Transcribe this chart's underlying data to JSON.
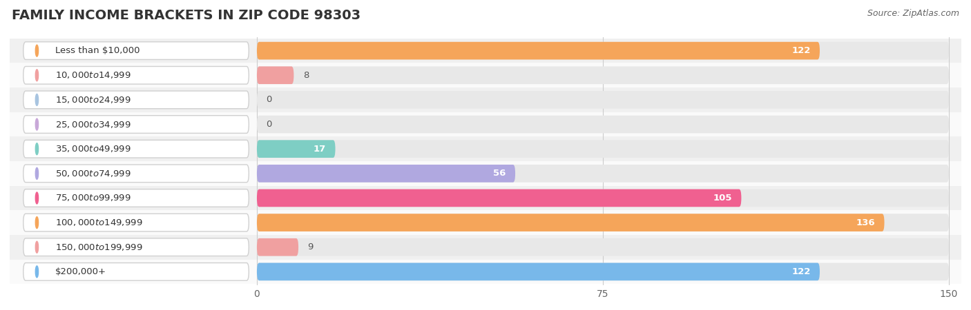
{
  "title": "FAMILY INCOME BRACKETS IN ZIP CODE 98303",
  "source": "Source: ZipAtlas.com",
  "categories": [
    "Less than $10,000",
    "$10,000 to $14,999",
    "$15,000 to $24,999",
    "$25,000 to $34,999",
    "$35,000 to $49,999",
    "$50,000 to $74,999",
    "$75,000 to $99,999",
    "$100,000 to $149,999",
    "$150,000 to $199,999",
    "$200,000+"
  ],
  "values": [
    122,
    8,
    0,
    0,
    17,
    56,
    105,
    136,
    9,
    122
  ],
  "bar_colors": [
    "#F5A55A",
    "#F0A0A0",
    "#A8C4E0",
    "#C8A8D8",
    "#7ECEC4",
    "#B0A8E0",
    "#F06090",
    "#F5A55A",
    "#F0A0A0",
    "#78B8EA"
  ],
  "xlim_data": [
    0,
    150
  ],
  "xticks": [
    0,
    75,
    150
  ],
  "background_color": "#ffffff",
  "bar_bg_color": "#e8e8e8",
  "row_bg_colors": [
    "#f0f0f0",
    "#fafafa"
  ],
  "title_fontsize": 14,
  "label_fontsize": 9.5,
  "value_fontsize": 9.5,
  "source_fontsize": 9
}
